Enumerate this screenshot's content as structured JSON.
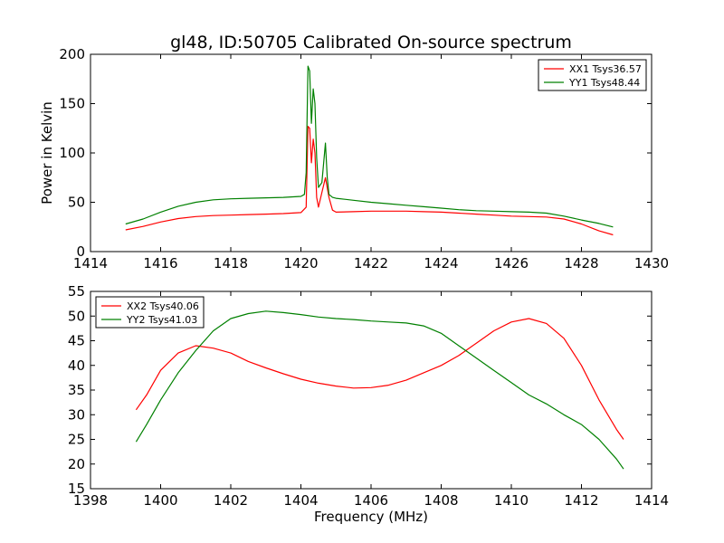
{
  "title": "gl48, ID:50705 Calibrated On-source spectrum",
  "colors": {
    "red": "#ff0000",
    "green": "#008000"
  },
  "chart_data": [
    {
      "type": "line",
      "ylabel": "Power in Kelvin",
      "xlabel": "",
      "xlim": [
        1414,
        1430
      ],
      "ylim": [
        0,
        200
      ],
      "xticks": [
        1414,
        1416,
        1418,
        1420,
        1422,
        1424,
        1426,
        1428,
        1430
      ],
      "yticks": [
        0,
        50,
        100,
        150,
        200
      ],
      "legend_position": "upper-right",
      "series": [
        {
          "name": "XX1 Tsys36.57",
          "color": "#ff0000",
          "points": [
            [
              1415.0,
              22
            ],
            [
              1415.5,
              25.5
            ],
            [
              1416.0,
              30
            ],
            [
              1416.5,
              33.5
            ],
            [
              1417.0,
              35.5
            ],
            [
              1417.5,
              36.5
            ],
            [
              1418.0,
              37
            ],
            [
              1418.5,
              37.5
            ],
            [
              1419.0,
              38
            ],
            [
              1419.5,
              38.5
            ],
            [
              1420.0,
              39.5
            ],
            [
              1420.15,
              45
            ],
            [
              1420.2,
              127
            ],
            [
              1420.25,
              125
            ],
            [
              1420.3,
              90
            ],
            [
              1420.35,
              114
            ],
            [
              1420.4,
              100
            ],
            [
              1420.45,
              55
            ],
            [
              1420.5,
              45
            ],
            [
              1420.6,
              60
            ],
            [
              1420.7,
              75
            ],
            [
              1420.8,
              55
            ],
            [
              1420.9,
              42
            ],
            [
              1421.0,
              40
            ],
            [
              1421.5,
              40.5
            ],
            [
              1422.0,
              41
            ],
            [
              1422.5,
              41
            ],
            [
              1423.0,
              41
            ],
            [
              1423.5,
              40.5
            ],
            [
              1424.0,
              40
            ],
            [
              1424.5,
              39
            ],
            [
              1425.0,
              38
            ],
            [
              1425.5,
              37
            ],
            [
              1426.0,
              36
            ],
            [
              1426.5,
              35.5
            ],
            [
              1427.0,
              35
            ],
            [
              1427.5,
              33
            ],
            [
              1428.0,
              28
            ],
            [
              1428.5,
              21
            ],
            [
              1428.9,
              17
            ]
          ]
        },
        {
          "name": "YY1 Tsys48.44",
          "color": "#008000",
          "points": [
            [
              1415.0,
              28
            ],
            [
              1415.5,
              33
            ],
            [
              1416.0,
              40
            ],
            [
              1416.5,
              46
            ],
            [
              1417.0,
              50
            ],
            [
              1417.5,
              52.5
            ],
            [
              1418.0,
              53.5
            ],
            [
              1418.5,
              54
            ],
            [
              1419.0,
              54.5
            ],
            [
              1419.5,
              55
            ],
            [
              1420.0,
              56
            ],
            [
              1420.1,
              58
            ],
            [
              1420.15,
              80
            ],
            [
              1420.2,
              188
            ],
            [
              1420.25,
              183
            ],
            [
              1420.3,
              130
            ],
            [
              1420.35,
              165
            ],
            [
              1420.4,
              150
            ],
            [
              1420.45,
              95
            ],
            [
              1420.5,
              65
            ],
            [
              1420.6,
              70
            ],
            [
              1420.7,
              110
            ],
            [
              1420.75,
              75
            ],
            [
              1420.8,
              58
            ],
            [
              1420.9,
              55
            ],
            [
              1421.0,
              54
            ],
            [
              1421.5,
              52
            ],
            [
              1422.0,
              50
            ],
            [
              1422.5,
              48.5
            ],
            [
              1423.0,
              47
            ],
            [
              1423.5,
              45.5
            ],
            [
              1424.0,
              44
            ],
            [
              1424.5,
              42.5
            ],
            [
              1425.0,
              41.5
            ],
            [
              1425.5,
              41
            ],
            [
              1426.0,
              40.5
            ],
            [
              1426.5,
              40
            ],
            [
              1427.0,
              39
            ],
            [
              1427.5,
              36
            ],
            [
              1428.0,
              32
            ],
            [
              1428.5,
              28.5
            ],
            [
              1428.9,
              25
            ]
          ]
        }
      ]
    },
    {
      "type": "line",
      "ylabel": "",
      "xlabel": "Frequency (MHz)",
      "xlim": [
        1398,
        1414
      ],
      "ylim": [
        15,
        55
      ],
      "xticks": [
        1398,
        1400,
        1402,
        1404,
        1406,
        1408,
        1410,
        1412,
        1414
      ],
      "yticks": [
        15,
        20,
        25,
        30,
        35,
        40,
        45,
        50,
        55
      ],
      "legend_position": "upper-left",
      "series": [
        {
          "name": "XX2 Tsys40.06",
          "color": "#ff0000",
          "points": [
            [
              1399.3,
              31
            ],
            [
              1399.6,
              34
            ],
            [
              1400.0,
              39
            ],
            [
              1400.5,
              42.5
            ],
            [
              1401.0,
              44
            ],
            [
              1401.5,
              43.5
            ],
            [
              1402.0,
              42.5
            ],
            [
              1402.5,
              40.8
            ],
            [
              1403.0,
              39.5
            ],
            [
              1403.5,
              38.3
            ],
            [
              1404.0,
              37.2
            ],
            [
              1404.5,
              36.4
            ],
            [
              1405.0,
              35.8
            ],
            [
              1405.5,
              35.4
            ],
            [
              1406.0,
              35.5
            ],
            [
              1406.5,
              36
            ],
            [
              1407.0,
              37
            ],
            [
              1407.5,
              38.5
            ],
            [
              1408.0,
              40
            ],
            [
              1408.5,
              42
            ],
            [
              1409.0,
              44.5
            ],
            [
              1409.5,
              47
            ],
            [
              1410.0,
              48.8
            ],
            [
              1410.5,
              49.5
            ],
            [
              1411.0,
              48.5
            ],
            [
              1411.5,
              45.5
            ],
            [
              1412.0,
              40
            ],
            [
              1412.5,
              33
            ],
            [
              1413.0,
              27
            ],
            [
              1413.2,
              25
            ]
          ]
        },
        {
          "name": "YY2 Tsys41.03",
          "color": "#008000",
          "points": [
            [
              1399.3,
              24.5
            ],
            [
              1399.6,
              28
            ],
            [
              1400.0,
              33
            ],
            [
              1400.5,
              38.5
            ],
            [
              1401.0,
              43
            ],
            [
              1401.5,
              47
            ],
            [
              1402.0,
              49.5
            ],
            [
              1402.5,
              50.5
            ],
            [
              1403.0,
              51
            ],
            [
              1403.5,
              50.7
            ],
            [
              1404.0,
              50.3
            ],
            [
              1404.5,
              49.8
            ],
            [
              1405.0,
              49.5
            ],
            [
              1405.5,
              49.3
            ],
            [
              1406.0,
              49
            ],
            [
              1406.5,
              48.8
            ],
            [
              1407.0,
              48.6
            ],
            [
              1407.5,
              48
            ],
            [
              1408.0,
              46.5
            ],
            [
              1408.5,
              44
            ],
            [
              1409.0,
              41.5
            ],
            [
              1409.5,
              39
            ],
            [
              1410.0,
              36.5
            ],
            [
              1410.5,
              34
            ],
            [
              1411.0,
              32.2
            ],
            [
              1411.5,
              30
            ],
            [
              1412.0,
              28
            ],
            [
              1412.5,
              25
            ],
            [
              1413.0,
              21
            ],
            [
              1413.2,
              19
            ]
          ]
        }
      ]
    }
  ]
}
